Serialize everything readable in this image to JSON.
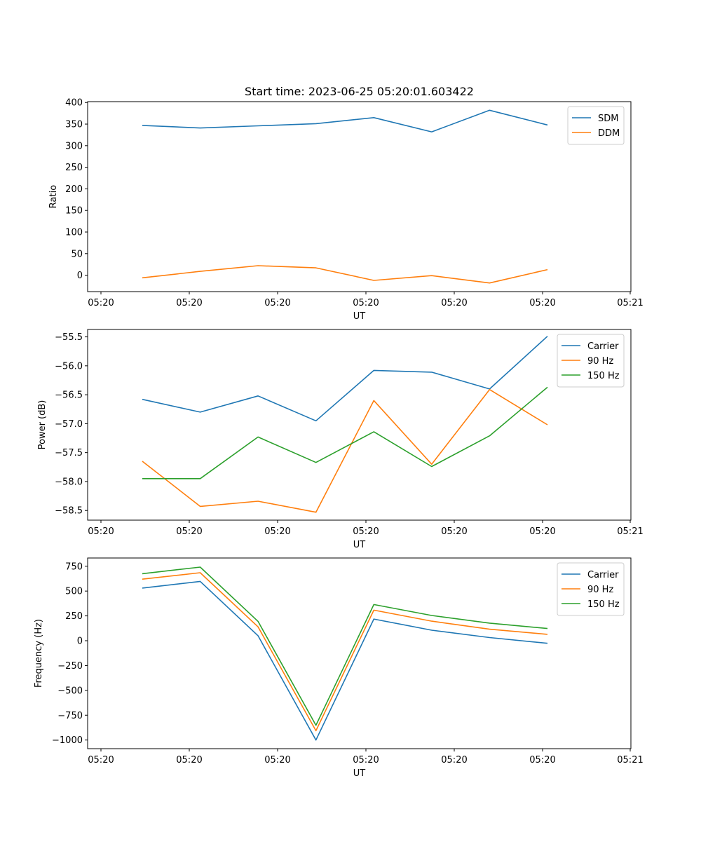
{
  "figure": {
    "title": "Start time: 2023-06-25 05:20:01.603422"
  },
  "chart_data": [
    {
      "type": "line",
      "title": "Start time: 2023-06-25 05:20:01.603422",
      "xlabel": "UT",
      "ylabel": "Ratio",
      "x_tick_labels": [
        "05:20",
        "05:20",
        "05:20",
        "05:20",
        "05:20",
        "05:21"
      ],
      "y_ticks": [
        0,
        50,
        100,
        150,
        200,
        250,
        300,
        350,
        400
      ],
      "ylim": [
        -38,
        402
      ],
      "legend_position": "top-right",
      "grid": false,
      "series": [
        {
          "name": "SDM",
          "color": "#1f77b4",
          "values": [
            347,
            341,
            346,
            351,
            365,
            332,
            382,
            348
          ]
        },
        {
          "name": "DDM",
          "color": "#ff7f0e",
          "values": [
            -6,
            9,
            22,
            17,
            -12,
            -1,
            -18,
            13
          ]
        }
      ]
    },
    {
      "type": "line",
      "xlabel": "UT",
      "ylabel": "Power (dB)",
      "x_tick_labels": [
        "05:20",
        "05:20",
        "05:20",
        "05:20",
        "05:20",
        "05:21"
      ],
      "y_ticks": [
        -58.5,
        -58.0,
        -57.5,
        -57.0,
        -56.5,
        -56.0,
        -55.5
      ],
      "y_tick_labels": [
        "−58.5",
        "−58.0",
        "−57.5",
        "−57.0",
        "−56.5",
        "−56.0",
        "−55.5"
      ],
      "ylim": [
        -58.667,
        -55.372
      ],
      "legend_position": "top-right",
      "grid": false,
      "series": [
        {
          "name": "Carrier",
          "color": "#1f77b4",
          "values": [
            -56.58,
            -56.8,
            -56.52,
            -56.95,
            -56.08,
            -56.11,
            -56.4,
            -55.49
          ]
        },
        {
          "name": "90 Hz",
          "color": "#ff7f0e",
          "values": [
            -57.65,
            -58.43,
            -58.34,
            -58.53,
            -56.6,
            -57.7,
            -56.41,
            -57.02
          ]
        },
        {
          "name": "150 Hz",
          "color": "#2ca02c",
          "values": [
            -57.95,
            -57.95,
            -57.23,
            -57.67,
            -57.14,
            -57.74,
            -57.21,
            -56.37
          ]
        }
      ]
    },
    {
      "type": "line",
      "xlabel": "UT",
      "ylabel": "Frequency (Hz)",
      "x_tick_labels": [
        "05:20",
        "05:20",
        "05:20",
        "05:20",
        "05:20",
        "05:21"
      ],
      "y_ticks": [
        -1000,
        -750,
        -500,
        -250,
        0,
        250,
        500,
        750
      ],
      "y_tick_labels": [
        "−1000",
        "−750",
        "−500",
        "−250",
        "0",
        "250",
        "500",
        "750"
      ],
      "ylim": [
        -1087,
        833
      ],
      "legend_position": "top-right",
      "grid": false,
      "series": [
        {
          "name": "Carrier",
          "color": "#1f77b4",
          "values": [
            530,
            597,
            50,
            -1000,
            218,
            106,
            32,
            -26
          ]
        },
        {
          "name": "90 Hz",
          "color": "#ff7f0e",
          "values": [
            620,
            685,
            140,
            -906,
            308,
            197,
            116,
            64
          ]
        },
        {
          "name": "150 Hz",
          "color": "#2ca02c",
          "values": [
            675,
            741,
            195,
            -851,
            364,
            254,
            177,
            123
          ]
        }
      ]
    }
  ]
}
